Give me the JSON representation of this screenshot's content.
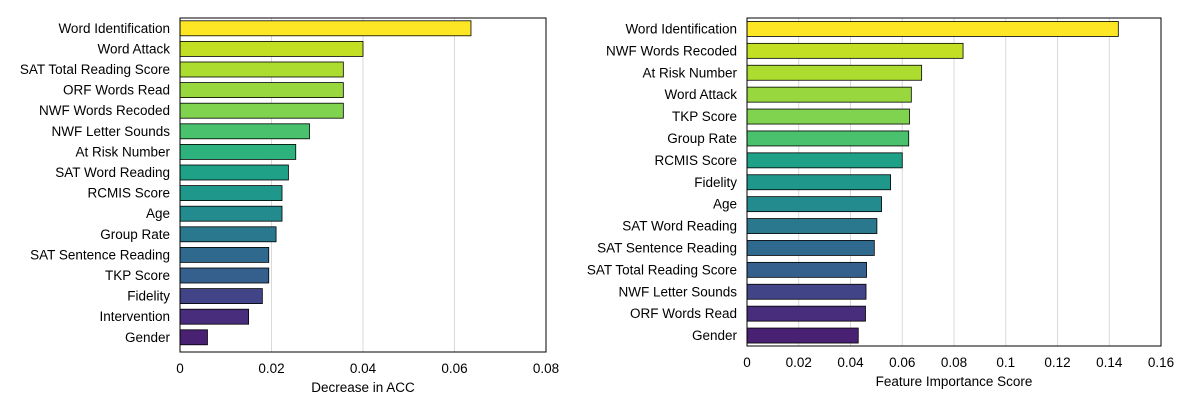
{
  "chart_data": [
    {
      "type": "bar",
      "orientation": "horizontal",
      "title": "",
      "xlabel": "Decrease in ACC",
      "ylabel": "",
      "xlim": [
        0,
        0.08
      ],
      "xticks": [
        "0",
        "0.02",
        "0.04",
        "0.06",
        "0.08"
      ],
      "xtick_values": [
        0,
        0.02,
        0.04,
        0.06,
        0.08
      ],
      "grid": "vertical",
      "categories": [
        "Word Identification",
        "Word Attack",
        "SAT Total Reading Score",
        "ORF Words Read",
        "NWF Words Recoded",
        "NWF Letter Sounds",
        "At Risk Number",
        "SAT Word Reading",
        "RCMIS Score",
        "Age",
        "Group Rate",
        "SAT Sentence Reading",
        "TKP Score",
        "Fidelity",
        "Intervention",
        "Gender"
      ],
      "values": [
        0.0636,
        0.04,
        0.0357,
        0.0357,
        0.0357,
        0.0283,
        0.0253,
        0.0237,
        0.0223,
        0.0223,
        0.021,
        0.0194,
        0.0194,
        0.018,
        0.015,
        0.006
      ],
      "colors": [
        "#fde725",
        "#c2df23",
        "#addc30",
        "#98d83e",
        "#7fd34e",
        "#4ac16d",
        "#2db27d",
        "#1fa187",
        "#1f988b",
        "#238a8d",
        "#2a788e",
        "#30698e",
        "#355f8d",
        "#414487",
        "#472d7b",
        "#482173"
      ]
    },
    {
      "type": "bar",
      "orientation": "horizontal",
      "title": "",
      "xlabel": "Feature Importance Score",
      "ylabel": "",
      "xlim": [
        0,
        0.16
      ],
      "xticks": [
        "0",
        "0.02",
        "0.04",
        "0.06",
        "0.08",
        "0.1",
        "0.12",
        "0.14",
        "0.16"
      ],
      "xtick_values": [
        0,
        0.02,
        0.04,
        0.06,
        0.08,
        0.1,
        0.12,
        0.14,
        0.16
      ],
      "grid": "vertical",
      "categories": [
        "Word Identification",
        "NWF Words Recoded",
        "At Risk Number",
        "Word Attack",
        "TKP Score",
        "Group Rate",
        "RCMIS Score",
        "Fidelity",
        "Age",
        "SAT Word Reading",
        "SAT Sentence Reading",
        "SAT Total Reading Score",
        "NWF Letter Sounds",
        "ORF Words Read",
        "Gender"
      ],
      "values": [
        0.1435,
        0.0835,
        0.0675,
        0.0635,
        0.0628,
        0.0625,
        0.06,
        0.0555,
        0.052,
        0.0502,
        0.0492,
        0.0462,
        0.046,
        0.0458,
        0.043
      ],
      "colors": [
        "#fde725",
        "#c2df23",
        "#addc30",
        "#98d83e",
        "#7fd34e",
        "#4ac16d",
        "#1fa187",
        "#1f988b",
        "#238a8d",
        "#2a788e",
        "#30698e",
        "#355f8d",
        "#414487",
        "#472d7b",
        "#482173"
      ]
    }
  ]
}
